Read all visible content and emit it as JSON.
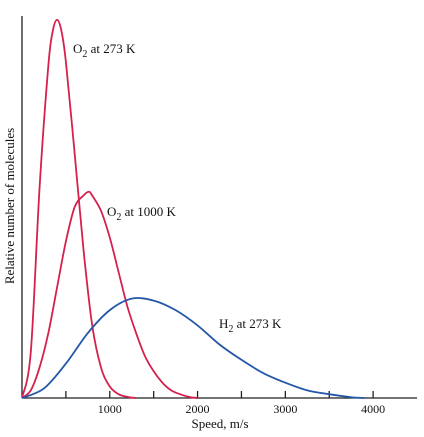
{
  "chart_data": {
    "type": "line",
    "xlabel": "Speed, m/s",
    "ylabel": "Relative number of molecules",
    "xlim": [
      0,
      4500
    ],
    "ylim": [
      0,
      1
    ],
    "x_ticks": [
      500,
      1000,
      1500,
      2000,
      2500,
      3000,
      3500,
      4000
    ],
    "x_tick_labels": [
      "1000",
      "2000",
      "3000",
      "4000"
    ],
    "x_tick_label_values": [
      1000,
      2000,
      3000,
      4000
    ],
    "grid": false,
    "legend": "none",
    "series": [
      {
        "name_parts": {
          "base": "O",
          "sub": "2",
          "rest": " at 273 K"
        },
        "color": "#d6204e",
        "x": [
          0,
          100,
          200,
          300,
          350,
          400,
          450,
          500,
          600,
          700,
          800,
          900,
          1000,
          1100,
          1200,
          1300
        ],
        "y": [
          0.0,
          0.12,
          0.55,
          0.87,
          0.96,
          0.99,
          0.96,
          0.88,
          0.64,
          0.39,
          0.19,
          0.08,
          0.03,
          0.01,
          0.003,
          0.0
        ]
      },
      {
        "name_parts": {
          "base": "O",
          "sub": "2",
          "rest": " at 1000 K"
        },
        "color": "#d6204e",
        "x": [
          0,
          100,
          200,
          300,
          400,
          500,
          600,
          700,
          760,
          800,
          900,
          1000,
          1100,
          1200,
          1300,
          1400,
          1500,
          1600,
          1700,
          1800,
          1900,
          2000
        ],
        "y": [
          0.0,
          0.02,
          0.08,
          0.17,
          0.29,
          0.41,
          0.5,
          0.53,
          0.54,
          0.53,
          0.49,
          0.42,
          0.33,
          0.24,
          0.17,
          0.11,
          0.07,
          0.04,
          0.02,
          0.01,
          0.003,
          0.0
        ]
      },
      {
        "name_parts": {
          "base": "H",
          "sub": "2",
          "rest": " at 273 K"
        },
        "color": "#2457a8",
        "x": [
          0,
          250,
          500,
          750,
          1000,
          1250,
          1500,
          1750,
          2000,
          2250,
          2500,
          2750,
          3000,
          3250,
          3500,
          3750,
          3900
        ],
        "y": [
          0.0,
          0.025,
          0.09,
          0.17,
          0.23,
          0.26,
          0.255,
          0.23,
          0.19,
          0.14,
          0.1,
          0.065,
          0.04,
          0.02,
          0.01,
          0.002,
          0.0
        ]
      }
    ]
  }
}
